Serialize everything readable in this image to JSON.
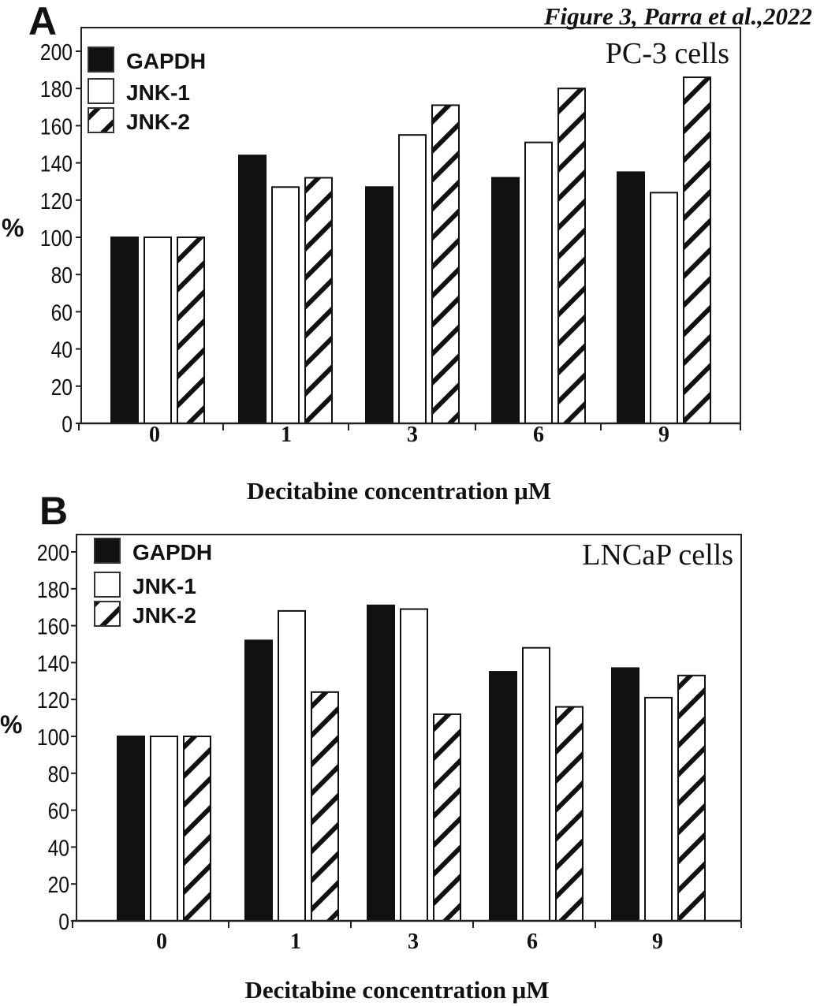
{
  "figure_caption": "Figure 3, Parra et al.,2022",
  "chart_data": [
    {
      "type": "bar",
      "panel_label": "A",
      "annotation": "PC-3 cells",
      "categories": [
        "0",
        "1",
        "3",
        "6",
        "9"
      ],
      "xlabel": "Decitabine concentration μM",
      "ylabel": "%",
      "ylim": [
        0,
        200
      ],
      "yticks": [
        "0",
        "20",
        "40",
        "60",
        "80",
        "100",
        "120",
        "140",
        "160",
        "180",
        "200"
      ],
      "grid": false,
      "legend_position": "top-left",
      "series": [
        {
          "name": "GAPDH",
          "fill": "solid-black",
          "values": [
            100,
            144,
            127,
            132,
            135
          ]
        },
        {
          "name": "JNK-1",
          "fill": "white",
          "values": [
            100,
            127,
            155,
            151,
            124
          ]
        },
        {
          "name": "JNK-2",
          "fill": "diagonal-hatch",
          "values": [
            100,
            132,
            171,
            180,
            186
          ]
        }
      ]
    },
    {
      "type": "bar",
      "panel_label": "B",
      "annotation": "LNCaP cells",
      "categories": [
        "0",
        "1",
        "3",
        "6",
        "9"
      ],
      "xlabel": "Decitabine concentration μM",
      "ylabel": "%",
      "ylim": [
        0,
        200
      ],
      "yticks": [
        "0",
        "20",
        "40",
        "60",
        "80",
        "100",
        "120",
        "140",
        "160",
        "180",
        "200"
      ],
      "grid": false,
      "legend_position": "top-left",
      "series": [
        {
          "name": "GAPDH",
          "fill": "solid-black",
          "values": [
            100,
            152,
            171,
            135,
            137
          ]
        },
        {
          "name": "JNK-1",
          "fill": "white",
          "values": [
            100,
            168,
            169,
            148,
            121
          ]
        },
        {
          "name": "JNK-2",
          "fill": "diagonal-hatch",
          "values": [
            100,
            124,
            112,
            116,
            133
          ]
        }
      ]
    }
  ]
}
